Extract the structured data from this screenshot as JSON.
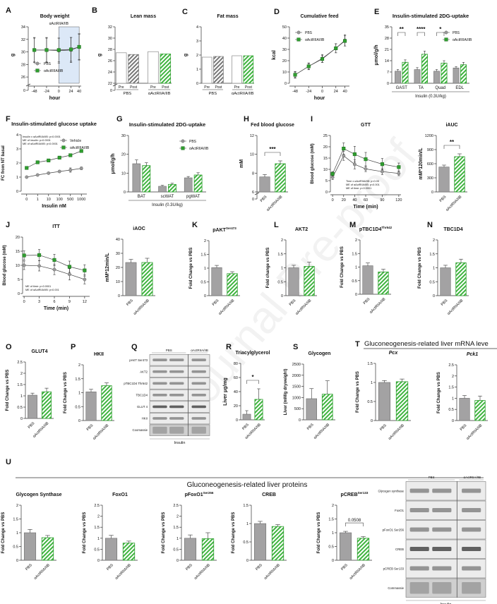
{
  "watermark": "Journal Pre-proof",
  "colors": {
    "pbs": "#a3a2a3",
    "pbs_dark": "#6f6f6f",
    "treat": "#2f9e2f",
    "treat_dark": "#1c6b1c",
    "shade": "#dce8f7"
  },
  "chart_data": [
    {
      "id": "A",
      "panel_label": "A",
      "type": "line",
      "title": "Body weight",
      "ylabel": "g",
      "xlabel": "hour",
      "x": [
        -48,
        -24,
        0,
        24,
        40
      ],
      "xlim": [
        -60,
        44
      ],
      "ylim": [
        25,
        34
      ],
      "yticks": [
        0,
        26,
        28,
        30,
        32,
        34
      ],
      "axis_break": true,
      "shade_from": 0,
      "shade_to": 40,
      "annotation": "αActRIIA/IIB",
      "legend": "bottom-left",
      "series": [
        {
          "name": "PBS",
          "values": [
            30.3,
            30.3,
            30.2,
            30.3,
            30.8
          ],
          "err": [
            2,
            2,
            2,
            2,
            2.1
          ]
        },
        {
          "name": "αActRIIA/IIB",
          "values": [
            30.3,
            30.3,
            30.3,
            30.4,
            30.8
          ],
          "err": [
            1.9,
            1.9,
            1.9,
            1.9,
            2
          ]
        }
      ]
    },
    {
      "id": "B",
      "panel_label": "B",
      "type": "paired_bar",
      "title": "Lean mass",
      "ylabel": "g",
      "categories": [
        "Pre",
        "Post",
        "Pre",
        "Post"
      ],
      "groups": [
        "PBS",
        "αActRIIA/IIB"
      ],
      "values": [
        27.4,
        27.1,
        27.6,
        27.2
      ],
      "ylim": [
        22,
        32
      ],
      "yticks": [
        0,
        22,
        24,
        26,
        28,
        30,
        32
      ],
      "axis_break": true
    },
    {
      "id": "C",
      "panel_label": "C",
      "type": "paired_bar",
      "title": "Fat mass",
      "ylabel": "g",
      "categories": [
        "Pre",
        "Post",
        "Pre",
        "Post"
      ],
      "groups": [
        "PBS",
        "αActRIIA/IIB"
      ],
      "values": [
        1.85,
        1.9,
        1.95,
        1.95
      ],
      "ylim": [
        0,
        4
      ],
      "yticks": [
        0,
        1,
        2,
        3,
        4
      ]
    },
    {
      "id": "D",
      "panel_label": "D",
      "type": "line",
      "title": "Cumulative feed",
      "ylabel": "kcal",
      "xlabel": "hour",
      "x": [
        -48,
        -24,
        0,
        24,
        40
      ],
      "xlim": [
        -58,
        48
      ],
      "ylim": [
        0,
        50
      ],
      "yticks": [
        0,
        10,
        20,
        30,
        40,
        50
      ],
      "legend": "top-left",
      "series": [
        {
          "name": "PBS",
          "values": [
            7.5,
            15,
            22,
            31,
            38
          ],
          "err": [
            3,
            3,
            3.5,
            4,
            5
          ]
        },
        {
          "name": "αActRIIA/IIB",
          "values": [
            7.5,
            15,
            21.5,
            31,
            37.5
          ],
          "err": [
            2.5,
            2.5,
            3,
            4,
            4.5
          ]
        }
      ]
    },
    {
      "id": "E",
      "panel_label": "E",
      "type": "grouped_bar",
      "title": "Insulin-stimulated 2DG-uptake",
      "ylabel": "μmol/g/h",
      "xlabel": "Insulin (0.3U/kg)",
      "categories": [
        "GAST",
        "TA",
        "Quad",
        "EDL"
      ],
      "ylim": [
        0,
        35
      ],
      "yticks": [
        0,
        7,
        14,
        21,
        28,
        35
      ],
      "legend": "top-right",
      "significance": [
        "**",
        "****",
        "*",
        ""
      ],
      "series": [
        {
          "name": "PBS",
          "values": [
            7.5,
            8.5,
            7.5,
            9.5
          ],
          "err": [
            1,
            1.2,
            1,
            0.8
          ]
        },
        {
          "name": "αActRIIA/IIB",
          "values": [
            13,
            18,
            12.5,
            11.5
          ],
          "err": [
            1.5,
            2,
            1.5,
            1.5
          ]
        }
      ]
    },
    {
      "id": "F",
      "panel_label": "F",
      "type": "line",
      "title": "Insulin-stimulated glucose uptake",
      "ylabel": "FC from NT basal",
      "xlabel": "Insulin nM",
      "x": [
        "0",
        "1",
        "10",
        "100",
        "500",
        "1000"
      ],
      "ylim": [
        0,
        4
      ],
      "yticks": [
        0,
        1,
        2,
        3,
        4
      ],
      "legend": "top-right",
      "annotations": [
        "Insulin x αActRIIA/IIB: p<0.0001",
        "ME of insulin: p=0.0001",
        "ME of αActRIIA/IIB: p<0.0001"
      ],
      "series": [
        {
          "name": "Vehicle",
          "values": [
            1.0,
            1.15,
            1.28,
            1.4,
            1.5,
            1.62
          ],
          "err": [
            0.03,
            0.04,
            0.06,
            0.08,
            0.15,
            0.1
          ]
        },
        {
          "name": "αActRIIA/IIB",
          "values": [
            1.65,
            2.05,
            2.18,
            2.38,
            2.55,
            2.85
          ],
          "err": [
            0.06,
            0.05,
            0.06,
            0.1,
            0.06,
            0.08
          ]
        }
      ]
    },
    {
      "id": "G",
      "panel_label": "G",
      "type": "grouped_bar",
      "title": "Insulin-stimulated 2DG-uptake",
      "ylabel": "μmol/g/h",
      "xlabel": "Insulin (0.3U/kg)",
      "categories": [
        "BAT",
        "scWAT",
        "pgWAT"
      ],
      "ylim": [
        0,
        30
      ],
      "yticks": [
        0,
        10,
        20,
        30
      ],
      "legend": "top-right",
      "series": [
        {
          "name": "PBS",
          "values": [
            15,
            3,
            7.5
          ],
          "err": [
            2,
            0.5,
            0.7
          ]
        },
        {
          "name": "αActRIIA/IIB",
          "values": [
            14,
            4,
            9
          ],
          "err": [
            1.5,
            0.6,
            1.2
          ]
        }
      ]
    },
    {
      "id": "H",
      "panel_label": "H",
      "type": "bar",
      "title": "Fed blood glucose",
      "ylabel": "mM",
      "categories": [
        "PBS",
        "αActRIIA/IIB"
      ],
      "values": [
        7.6,
        9.0
      ],
      "err": [
        0.25,
        0.3
      ],
      "ylim": [
        6,
        12
      ],
      "yticks": [
        0,
        6,
        8,
        10,
        12
      ],
      "axis_break": true,
      "significance": "***"
    },
    {
      "id": "I",
      "panel_label": "I",
      "type": "line",
      "title": "GTT",
      "ylabel": "Blood glucose (mM)",
      "xlabel": "Time (min)",
      "x": [
        0,
        20,
        40,
        60,
        90,
        120
      ],
      "xlim": [
        -4,
        124
      ],
      "ylim": [
        0,
        25
      ],
      "yticks": [
        0,
        5,
        10,
        15,
        20,
        25
      ],
      "annotations": [
        "Time x αActRIIA/IIB: p<0.05",
        "ME of αActRIIA/IIB: p<0.001",
        "ME of time: p<0.0001"
      ],
      "series": [
        {
          "name": "PBS",
          "values": [
            6.5,
            16,
            12.2,
            10.2,
            9,
            8.2
          ],
          "err": [
            1,
            2,
            2,
            1.2,
            1.3,
            1
          ]
        },
        {
          "name": "αActRIIA/IIB",
          "values": [
            8,
            19.2,
            16.7,
            14.5,
            12.3,
            11
          ],
          "err": [
            1,
            2.5,
            3.5,
            3,
            2.5,
            1.8
          ]
        }
      ]
    },
    {
      "id": "I2",
      "panel_label": "",
      "type": "bar",
      "title": "iAUC",
      "ylabel": "mM*120min/L",
      "categories": [
        "PBS",
        "αActRIIA/IIB"
      ],
      "values": [
        530,
        750
      ],
      "err": [
        40,
        60
      ],
      "ylim": [
        0,
        1200
      ],
      "yticks": [
        0,
        300,
        600,
        900,
        1200
      ],
      "significance": "**"
    },
    {
      "id": "J",
      "panel_label": "J",
      "type": "line",
      "title": "ITT",
      "ylabel": "Blood glucose (mM)",
      "xlabel": "Time (min)",
      "x": [
        0,
        3,
        6,
        9,
        12
      ],
      "xlim": [
        -0.3,
        13
      ],
      "ylim": [
        0,
        20
      ],
      "yticks": [
        0,
        5,
        10,
        15,
        20
      ],
      "annotations": [
        "ME of time: p<0.0001",
        "ME of αActRIIA/IIB: p<0.001"
      ],
      "series": [
        {
          "name": "PBS",
          "values": [
            10,
            9.8,
            8.5,
            6.8,
            5
          ],
          "err": [
            1.5,
            1.8,
            1.8,
            2,
            1.6
          ]
        },
        {
          "name": "αActRIIA/IIB",
          "values": [
            13.5,
            13.6,
            11.9,
            9.5,
            8.2
          ],
          "err": [
            1.6,
            2,
            2,
            2,
            2
          ]
        }
      ]
    },
    {
      "id": "J2",
      "panel_label": "",
      "type": "bar",
      "title": "iAOC",
      "ylabel": "mM*12min/L",
      "categories": [
        "PBS",
        "αActRIIA/IIB"
      ],
      "values": [
        23.5,
        23.5
      ],
      "err": [
        2.2,
        3
      ],
      "ylim": [
        0,
        40
      ],
      "yticks": [
        0,
        10,
        20,
        30,
        40
      ]
    },
    {
      "id": "K",
      "panel_label": "K",
      "type": "bar",
      "title": "pAKT",
      "title_sup": "Ser473",
      "ylabel": "Fold Change vs PBS",
      "categories": [
        "PBS",
        "αActRIIA/IIB"
      ],
      "values": [
        1.02,
        0.8
      ],
      "err": [
        0.08,
        0.07
      ],
      "ylim": [
        0,
        2
      ],
      "yticks": [
        0,
        0.5,
        1,
        1.5,
        2
      ]
    },
    {
      "id": "L",
      "panel_label": "L",
      "type": "bar",
      "title": "AKT2",
      "ylabel": "Fold change vs PBS",
      "categories": [
        "PBS",
        "αActRIIA/IIB"
      ],
      "values": [
        1.0,
        1.05
      ],
      "err": [
        0.09,
        0.15
      ],
      "ylim": [
        0,
        2
      ],
      "yticks": [
        0,
        0.5,
        1,
        1.5,
        2
      ]
    },
    {
      "id": "M",
      "panel_label": "M",
      "type": "bar",
      "title": "pTBC1D4",
      "title_sup": "Thr642",
      "ylabel": "Fold Change vs PBS",
      "categories": [
        "PBS",
        "αActRIIA/IIB"
      ],
      "values": [
        1.05,
        0.82
      ],
      "err": [
        0.1,
        0.1
      ],
      "ylim": [
        0,
        2
      ],
      "yticks": [
        0,
        0.5,
        1,
        1.5,
        2
      ]
    },
    {
      "id": "N",
      "panel_label": "N",
      "type": "bar",
      "title": "TBC1D4",
      "ylabel": "Fold Change vs PBS",
      "categories": [
        "PBS",
        "αActRIIA/IIB"
      ],
      "values": [
        1.0,
        1.18
      ],
      "err": [
        0.09,
        0.13
      ],
      "ylim": [
        0,
        2
      ],
      "yticks": [
        0,
        0.5,
        1,
        1.5,
        2
      ]
    },
    {
      "id": "O",
      "panel_label": "O",
      "type": "bar",
      "title": "GLUT4",
      "ylabel": "Fold Change vs PBS",
      "categories": [
        "PBS",
        "αActRIIA/IIB"
      ],
      "values": [
        1.03,
        1.18
      ],
      "err": [
        0.09,
        0.16
      ],
      "ylim": [
        0,
        2.5
      ],
      "yticks": [
        0,
        0.5,
        1,
        1.5,
        2,
        2.5
      ]
    },
    {
      "id": "P",
      "panel_label": "P",
      "type": "bar",
      "title": "HKII",
      "ylabel": "Fold Change vs PBS",
      "categories": [
        "PBS",
        "αActRIIA/IIB"
      ],
      "values": [
        1.03,
        1.25
      ],
      "err": [
        0.09,
        0.1
      ],
      "ylim": [
        0,
        2
      ],
      "yticks": [
        0,
        0.5,
        1,
        1.5,
        2
      ]
    },
    {
      "id": "R",
      "panel_label": "R",
      "type": "bar",
      "title": "Triacylglycerol",
      "ylabel": "Liver μg/mg",
      "categories": [
        "PBS",
        "αActRIIA/IIB"
      ],
      "values": [
        8,
        29
      ],
      "err": [
        5,
        15
      ],
      "ylim": [
        0,
        80
      ],
      "yticks": [
        0,
        20,
        40,
        60,
        80
      ],
      "significance": "*"
    },
    {
      "id": "S",
      "panel_label": "S",
      "type": "bar",
      "title": "Glycogen",
      "ylabel": "Liver (mM/g dryweight)",
      "categories": [
        "PBS",
        "αActRIIA/IIB"
      ],
      "values": [
        950,
        1150
      ],
      "err": [
        450,
        600
      ],
      "ylim": [
        0,
        2500
      ],
      "yticks": [
        0,
        500,
        1000,
        1500,
        2000,
        2500
      ]
    },
    {
      "id": "T1",
      "panel_label": "",
      "type": "bar",
      "title": "Pcx",
      "italic": true,
      "ylabel": "Fold Change vs PBS",
      "categories": [
        "PBS",
        "αActRIIA/IIB"
      ],
      "values": [
        1.0,
        1.02
      ],
      "err": [
        0.05,
        0.07
      ],
      "ylim": [
        0,
        1.5
      ],
      "yticks": [
        0,
        0.5,
        1,
        1.5
      ]
    },
    {
      "id": "T2",
      "panel_label": "",
      "type": "bar",
      "title": "Pck1",
      "italic": true,
      "ylabel": "Fold Change vs PBS",
      "categories": [
        "PBS",
        "αActRIIA/IIB"
      ],
      "values": [
        1.0,
        0.9
      ],
      "err": [
        0.12,
        0.2
      ],
      "ylim": [
        0,
        2.5
      ],
      "yticks": [
        0,
        0.5,
        1,
        1.5,
        2,
        2.5
      ]
    },
    {
      "id": "U1",
      "panel_label": "",
      "type": "bar",
      "title": "Glycogen Synthase",
      "ylabel": "Fold Change vs PBS",
      "categories": [
        "PBS",
        "αActRIIA/IIB"
      ],
      "values": [
        1.0,
        0.82
      ],
      "err": [
        0.12,
        0.08
      ],
      "ylim": [
        0,
        2
      ],
      "yticks": [
        0,
        0.5,
        1,
        1.5,
        2
      ]
    },
    {
      "id": "U2",
      "panel_label": "",
      "type": "bar",
      "title": "FoxO1",
      "ylabel": "Fold Change vs PBS",
      "categories": [
        "PBS",
        "αActRIIA/IIB"
      ],
      "values": [
        1.0,
        0.78
      ],
      "err": [
        0.13,
        0.09
      ],
      "ylim": [
        0,
        2.5
      ],
      "yticks": [
        0,
        0.5,
        1,
        1.5,
        2,
        2.5
      ]
    },
    {
      "id": "U3",
      "panel_label": "",
      "type": "bar",
      "title": "pFoxO1",
      "title_sup": "Ser256",
      "ylabel": "Fold Change vs PBS",
      "categories": [
        "PBS",
        "αActRIIA/IIB"
      ],
      "values": [
        1.0,
        0.98
      ],
      "err": [
        0.15,
        0.27
      ],
      "ylim": [
        0,
        2.5
      ],
      "yticks": [
        0,
        0.5,
        1,
        1.5,
        2,
        2.5
      ]
    },
    {
      "id": "U4",
      "panel_label": "",
      "type": "bar",
      "title": "CREB",
      "ylabel": "Fold Change vs PBS",
      "categories": [
        "PBS",
        "αActRIIA/IIB"
      ],
      "values": [
        1.0,
        0.92
      ],
      "err": [
        0.06,
        0.05
      ],
      "ylim": [
        0,
        1.5
      ],
      "yticks": [
        0,
        0.5,
        1,
        1.5
      ]
    },
    {
      "id": "U5",
      "panel_label": "",
      "type": "bar",
      "title": "pCREB",
      "title_sup": "Ser133",
      "ylabel": "Fold Change vs PBS",
      "categories": [
        "PBS",
        "αActRIIA/IIB"
      ],
      "values": [
        1.0,
        0.8
      ],
      "err": [
        0.05,
        0.06
      ],
      "ylim": [
        0,
        2
      ],
      "yticks": [
        0,
        0.5,
        1,
        1.5,
        2
      ],
      "significance": "0.0508"
    }
  ],
  "blots": [
    {
      "id": "Q",
      "panel_label": "Q",
      "groups": [
        "PBS",
        "αActRIIA/IIB"
      ],
      "footer": "Insulin",
      "rows": [
        "pAKT Ser473",
        "AKT2",
        "pTBC1D4 Thr642",
        "TBC1D4",
        "GLUT 4",
        "HKII",
        "Coomassie"
      ]
    },
    {
      "id": "UB",
      "panel_label": "",
      "groups": [
        "PBS",
        "αActRIIA/IIB"
      ],
      "footer": "Insulin",
      "rows": [
        "Glycogen synthase",
        "FoxO1",
        "pFoxO1 Ser256",
        "CREB",
        "pCREB Ser133",
        "Commassie"
      ]
    }
  ],
  "sections": {
    "T": {
      "panel_label": "T",
      "title": "Gluconeogenesis-related liver mRNA leve"
    },
    "U": {
      "panel_label": "U",
      "title": "Gluconeogenesis-related liver proteins"
    }
  }
}
